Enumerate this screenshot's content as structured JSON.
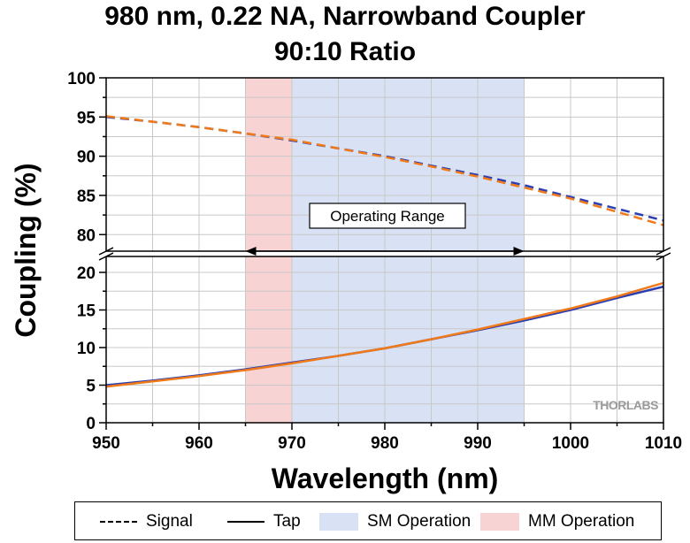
{
  "chart_data": {
    "type": "line",
    "title": [
      "980 nm, 0.22 NA, Narrowband Coupler",
      "90:10 Ratio"
    ],
    "xlabel": "Wavelength (nm)",
    "ylabel": "Coupling (%)",
    "xlim": [
      950,
      1010
    ],
    "x_ticks": [
      950,
      960,
      970,
      980,
      990,
      1000,
      1010
    ],
    "upper_ylim": [
      78,
      100
    ],
    "upper_y_ticks": [
      80,
      85,
      90,
      95,
      100
    ],
    "lower_ylim": [
      0,
      22
    ],
    "lower_y_ticks": [
      0,
      5,
      10,
      15,
      20
    ],
    "axis_break": true,
    "grid": true,
    "legend_position": "bottom",
    "shaded_regions": [
      {
        "name": "MM Operation",
        "from": 965,
        "to": 970,
        "color": "#f7d3d3"
      },
      {
        "name": "SM Operation",
        "from": 970,
        "to": 995,
        "color": "#d9e2f5"
      }
    ],
    "annotation": {
      "text": "Operating Range",
      "from": 965,
      "to": 995
    },
    "watermark": "THORLABS",
    "x": [
      950,
      955,
      960,
      965,
      970,
      975,
      980,
      985,
      990,
      995,
      1000,
      1005,
      1010
    ],
    "series": [
      {
        "name": "Signal",
        "style": "dashed",
        "color": "#2d3fb0",
        "values": [
          95.0,
          94.4,
          93.7,
          92.9,
          92.0,
          91.0,
          90.0,
          88.8,
          87.6,
          86.3,
          84.8,
          83.3,
          81.8
        ]
      },
      {
        "name": "Signal",
        "style": "dashed",
        "color": "#f07a1a",
        "values": [
          95.1,
          94.4,
          93.7,
          92.9,
          92.1,
          91.0,
          89.9,
          88.7,
          87.4,
          86.0,
          84.6,
          82.9,
          81.2
        ]
      },
      {
        "name": "Tap",
        "style": "solid",
        "color": "#2d3fb0",
        "values": [
          5.0,
          5.6,
          6.3,
          7.1,
          8.0,
          8.9,
          9.9,
          11.1,
          12.3,
          13.6,
          15.0,
          16.6,
          18.1
        ]
      },
      {
        "name": "Tap",
        "style": "solid",
        "color": "#f07a1a",
        "values": [
          4.8,
          5.5,
          6.2,
          7.0,
          7.9,
          8.9,
          9.9,
          11.1,
          12.4,
          13.8,
          15.2,
          16.8,
          18.6
        ]
      }
    ]
  },
  "legend": {
    "signal_label": "Signal",
    "tap_label": "Tap",
    "sm_label": "SM Operation",
    "mm_label": "MM Operation"
  }
}
